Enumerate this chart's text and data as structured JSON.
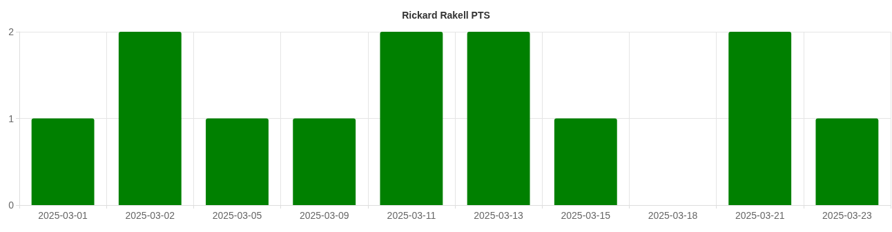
{
  "chart_data": {
    "type": "bar",
    "title": "Rickard Rakell PTS",
    "categories": [
      "2025-03-01",
      "2025-03-02",
      "2025-03-05",
      "2025-03-09",
      "2025-03-11",
      "2025-03-13",
      "2025-03-15",
      "2025-03-18",
      "2025-03-21",
      "2025-03-23"
    ],
    "values": [
      1,
      2,
      1,
      1,
      2,
      2,
      1,
      0,
      2,
      1
    ],
    "color": "#008000",
    "ylim": [
      0,
      2
    ],
    "yticks": [
      0,
      1,
      2
    ],
    "grid": true
  }
}
